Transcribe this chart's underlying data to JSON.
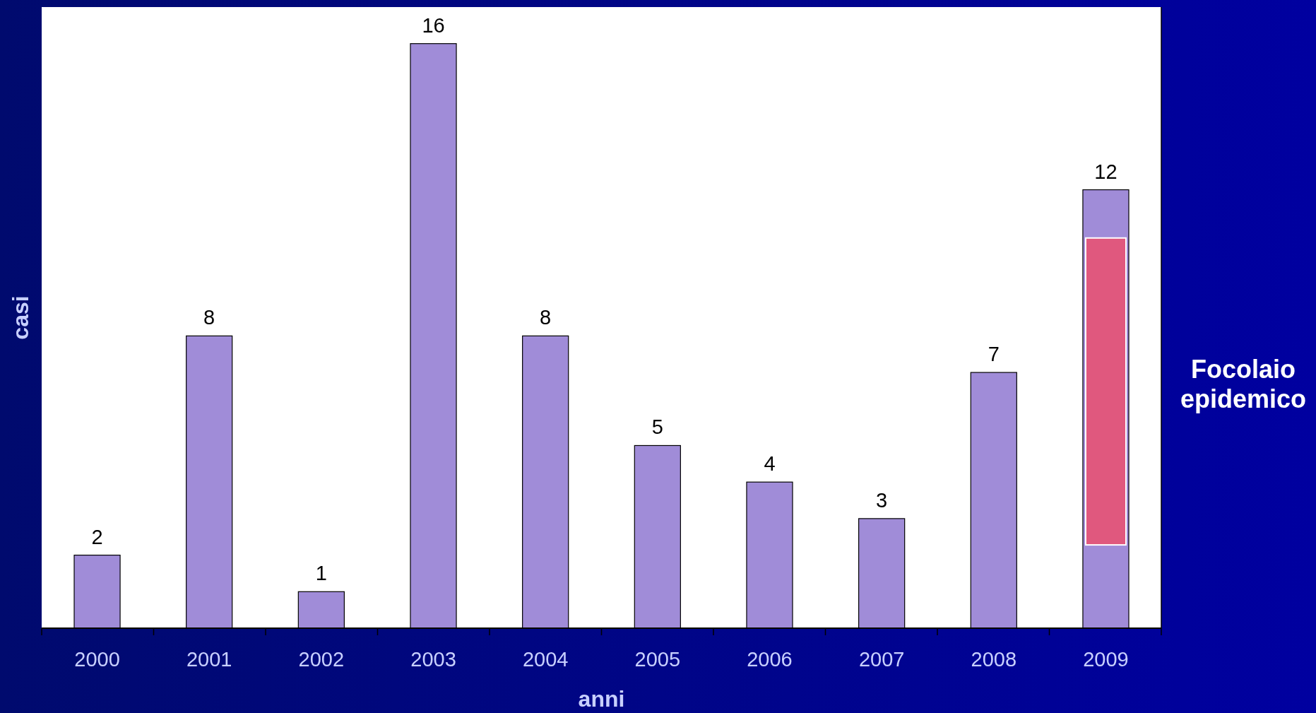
{
  "chart_data": {
    "type": "bar",
    "xlabel": "anni",
    "ylabel": "casi",
    "categories": [
      "2000",
      "2001",
      "2002",
      "2003",
      "2004",
      "2005",
      "2006",
      "2007",
      "2008",
      "2009"
    ],
    "values": [
      2,
      8,
      1,
      16,
      8,
      5,
      4,
      3,
      7,
      12
    ],
    "color": "#a08cd8",
    "ylim": [
      0,
      17
    ],
    "data_labels": true,
    "grid": false,
    "annotations": [
      "Focolaio epidemico"
    ]
  }
}
